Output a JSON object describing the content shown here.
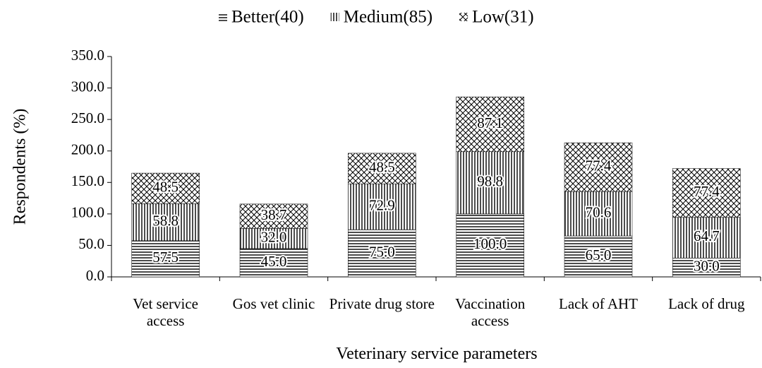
{
  "chart_data": {
    "type": "bar",
    "stacked": true,
    "x_label": "Veterinary service parameters",
    "y_label": "Respondents (%)",
    "categories": [
      "Vet service access",
      "Gos vet clinic",
      "Private drug store",
      "Vaccination access",
      "Lack of AHT",
      "Lack of drug"
    ],
    "series": [
      {
        "name": "Better(40)",
        "color": "#000000",
        "hatch": "horizontal",
        "values": [
          57.5,
          45.0,
          75.0,
          100.0,
          65.0,
          30.0
        ],
        "value_labels": [
          "57.5",
          "45.0",
          "75.0",
          "100.0",
          "65.0",
          "30.0"
        ]
      },
      {
        "name": "Medium(85)",
        "color": "#000000",
        "hatch": "vertical",
        "values": [
          58.8,
          32.0,
          72.9,
          98.8,
          70.6,
          64.7
        ],
        "value_labels": [
          "58.8",
          "32.0",
          "72.9",
          "98.8",
          "70.6",
          "64.7"
        ]
      },
      {
        "name": "Low(31)",
        "color": "#000000",
        "hatch": "cross",
        "values": [
          48.5,
          38.7,
          48.5,
          87.1,
          77.4,
          77.4
        ],
        "value_labels": [
          "48.5",
          "38.7",
          "48.5",
          "87.1",
          "77.4",
          "77.4"
        ]
      }
    ],
    "ylim": [
      0,
      350
    ],
    "yticks": [
      {
        "value": 0,
        "label": "0.0"
      },
      {
        "value": 50,
        "label": "50.0"
      },
      {
        "value": 100,
        "label": "100.0"
      },
      {
        "value": 150,
        "label": "150.0"
      },
      {
        "value": 200,
        "label": "200.0"
      },
      {
        "value": 250,
        "label": "250.0"
      },
      {
        "value": 300,
        "label": "300.0"
      },
      {
        "value": 350,
        "label": "350.0"
      }
    ],
    "legend": "top"
  }
}
